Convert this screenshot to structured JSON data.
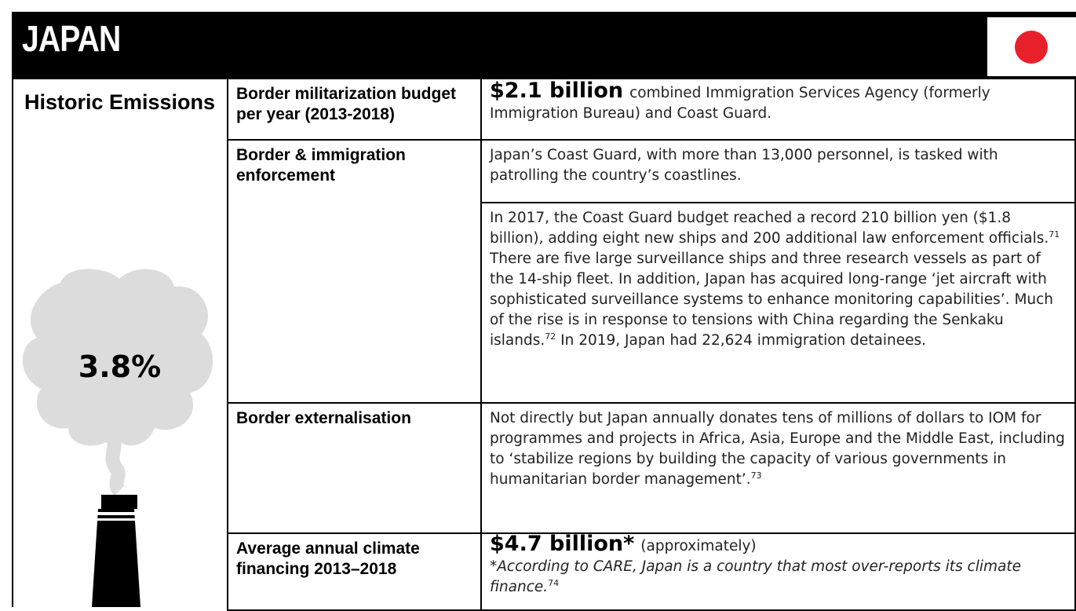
{
  "header": {
    "title": "JAPAN"
  },
  "emissions": {
    "label": "Historic Emissions",
    "value": "3.8%"
  },
  "table": {
    "rows": [
      {
        "label": "Border militarization budget per year (2013-2018)",
        "highlight": "$2.1 billion",
        "text": "combined Immigration Services Agency (formerly Immigration Bureau) and Coast Guard."
      },
      {
        "label": "Border & immigration enforcement",
        "paragraphs": [
          [
            {
              "text": "Japan’s Coast Guard, with more than 13,000 personnel, is tasked with patrolling the country’s coastlines."
            }
          ],
          [
            {
              "text": "In 2017, the Coast Guard budget reached a record 210 billion yen ($1.8 billion), adding eight new ships and 200 additional law enforcement officials.",
              "sup": "71"
            },
            {
              "text": " There are five large surveillance ships and three research vessels as part of the 14-ship fleet. In addition, Japan has acquired long-range ‘jet aircraft with sophisticated surveillance systems to enhance monitoring capabilities’. Much of the rise is in response to tensions with China regarding the Senkaku islands.",
              "sup": "72"
            },
            {
              "text": " In 2019, Japan had 22,624 immigration detainees."
            }
          ]
        ]
      },
      {
        "label": "Border externalisation",
        "paragraphs": [
          [
            {
              "text": "Not directly but Japan annually donates tens of millions of dollars to IOM for programmes and projects in Africa, Asia, Europe and the Middle East, including to ‘stabilize regions by building the capacity of various governments in humanitarian border management’.",
              "sup": "73"
            }
          ]
        ]
      },
      {
        "label": "Average annual climate financing 2013–2018",
        "highlight": "$4.7 billion*",
        "text": "(approximately)",
        "note": "*According to CARE, Japan is a country that most over-reports its climate finance.",
        "note_sup": "74"
      }
    ]
  }
}
